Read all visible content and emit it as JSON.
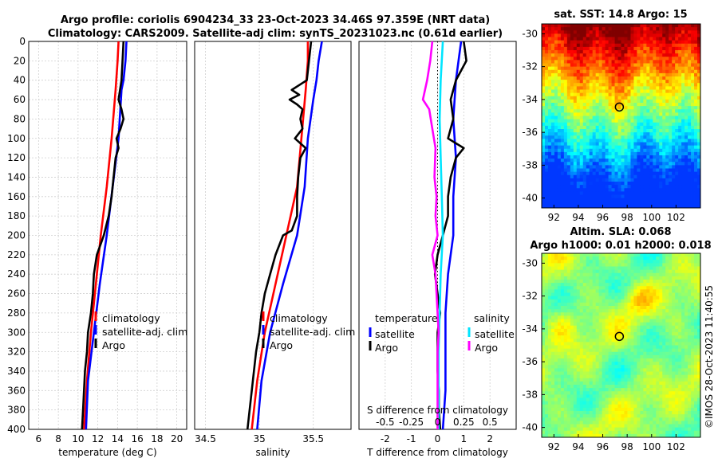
{
  "figure": {
    "title_line1": "Argo profile: coriolis 6904234_33 23-Oct-2023 34.46S 97.359E (NRT data)",
    "title_line2": "Climatology: CARS2009. Satellite-adj clim: synTS_20231023.nc (0.61d earlier)",
    "side_label": "©IMOS 28-Oct-2023 11:40:55"
  },
  "colors": {
    "climatology": "#ff0000",
    "satellite_adj": "#0000ff",
    "argo": "#000000",
    "salinity_satellite": "#00e5ff",
    "salinity_argo": "#ff00ff"
  },
  "chart_data": [
    {
      "type": "line",
      "name": "temperature-profile",
      "xlabel": "temperature (deg C)",
      "ylabel": "",
      "xlim": [
        5,
        21
      ],
      "ylim": [
        400,
        0
      ],
      "xticks": [
        6,
        8,
        10,
        12,
        14,
        16,
        18,
        20
      ],
      "yticks": [
        0,
        20,
        40,
        60,
        80,
        100,
        120,
        140,
        160,
        180,
        200,
        220,
        240,
        260,
        280,
        300,
        320,
        340,
        360,
        380,
        400
      ],
      "legend": [
        "climatology",
        "satellite-adj. clim",
        "Argo"
      ],
      "legend_position": "lower-right",
      "series": [
        {
          "name": "climatology",
          "color": "#ff0000",
          "depth": [
            0,
            20,
            50,
            100,
            150,
            200,
            250,
            300,
            350,
            400
          ],
          "values": [
            14.1,
            14.0,
            13.8,
            13.4,
            12.9,
            12.3,
            11.8,
            11.3,
            10.9,
            10.6
          ]
        },
        {
          "name": "satellite-adj. clim",
          "color": "#0000ff",
          "depth": [
            0,
            20,
            40,
            50,
            100,
            150,
            200,
            250,
            300,
            350,
            400
          ],
          "values": [
            14.9,
            14.8,
            14.6,
            14.4,
            14.1,
            13.5,
            12.9,
            12.2,
            11.6,
            11.0,
            10.8
          ]
        },
        {
          "name": "Argo",
          "color": "#000000",
          "depth": [
            0,
            20,
            40,
            60,
            70,
            80,
            90,
            100,
            110,
            120,
            140,
            160,
            180,
            200,
            220,
            240,
            260,
            280,
            300,
            320,
            340,
            360,
            380,
            400
          ],
          "values": [
            14.6,
            14.5,
            14.4,
            14.1,
            14.4,
            14.6,
            14.3,
            13.9,
            14.1,
            13.8,
            13.6,
            13.4,
            13.1,
            12.6,
            11.9,
            11.6,
            11.5,
            11.3,
            11.0,
            10.9,
            10.7,
            10.6,
            10.5,
            10.4
          ]
        }
      ]
    },
    {
      "type": "line",
      "name": "salinity-profile",
      "xlabel": "salinity",
      "ylabel": "",
      "xlim": [
        34.4,
        35.85
      ],
      "ylim": [
        400,
        0
      ],
      "xticks": [
        34.5,
        35,
        35.5
      ],
      "xticklabels": [
        "34.5",
        "35",
        "35.5"
      ],
      "legend": [
        "climatology",
        "satellite-adj. clim",
        "Argo"
      ],
      "legend_position": "lower-right",
      "series": [
        {
          "name": "climatology",
          "color": "#ff0000",
          "depth": [
            0,
            20,
            50,
            100,
            150,
            200,
            250,
            300,
            350,
            400
          ],
          "values": [
            35.45,
            35.45,
            35.43,
            35.39,
            35.35,
            35.25,
            35.15,
            35.05,
            34.98,
            34.93
          ]
        },
        {
          "name": "satellite-adj. clim",
          "color": "#0000ff",
          "depth": [
            0,
            20,
            40,
            60,
            100,
            150,
            200,
            250,
            300,
            350,
            400
          ],
          "values": [
            35.58,
            35.55,
            35.53,
            35.5,
            35.45,
            35.42,
            35.35,
            35.22,
            35.1,
            35.02,
            34.98
          ]
        },
        {
          "name": "Argo",
          "color": "#000000",
          "depth": [
            0,
            20,
            40,
            50,
            55,
            60,
            65,
            70,
            80,
            90,
            100,
            110,
            120,
            140,
            160,
            180,
            195,
            200,
            220,
            240,
            260,
            280,
            300,
            320,
            340,
            360,
            380,
            400
          ],
          "values": [
            35.48,
            35.46,
            35.44,
            35.3,
            35.37,
            35.28,
            35.35,
            35.4,
            35.38,
            35.4,
            35.33,
            35.43,
            35.38,
            35.36,
            35.35,
            35.35,
            35.3,
            35.22,
            35.15,
            35.1,
            35.05,
            35.02,
            35.0,
            34.97,
            34.95,
            34.93,
            34.91,
            34.89
          ]
        }
      ]
    },
    {
      "type": "line",
      "name": "difference-profile",
      "xlabel": "T difference from climatology",
      "x2label": "S difference from climatology",
      "xlim": [
        -3,
        3
      ],
      "x2lim": [
        -0.75,
        0.75
      ],
      "ylim": [
        400,
        0
      ],
      "xticks": [
        -2,
        -1,
        0,
        1,
        2
      ],
      "x2ticks": [
        -0.5,
        -0.25,
        0,
        0.25,
        0.5
      ],
      "x2ticklabels": [
        "-0.5",
        "-0.25",
        "0",
        "0.25",
        "0.5"
      ],
      "legend_temperature": {
        "title": "temperature",
        "items": [
          "satellite",
          "Argo"
        ]
      },
      "legend_salinity": {
        "title": "salinity",
        "items": [
          "satellite",
          "Argo"
        ]
      },
      "series": [
        {
          "name": "temperature satellite",
          "axis": "T",
          "color": "#0000ff",
          "depth": [
            0,
            40,
            80,
            120,
            160,
            200,
            240,
            280,
            320,
            360,
            400
          ],
          "values": [
            0.9,
            0.7,
            0.6,
            0.7,
            0.6,
            0.6,
            0.4,
            0.3,
            0.3,
            0.3,
            0.2
          ]
        },
        {
          "name": "temperature Argo",
          "axis": "T",
          "color": "#000000",
          "depth": [
            0,
            20,
            40,
            60,
            80,
            100,
            110,
            120,
            140,
            160,
            180,
            200,
            220,
            240,
            260,
            280,
            300,
            320,
            340,
            360,
            380,
            400
          ],
          "values": [
            1.0,
            1.1,
            0.7,
            0.5,
            0.6,
            0.4,
            1.0,
            0.7,
            0.5,
            0.4,
            0.4,
            0.2,
            0.0,
            -0.1,
            0.0,
            0.1,
            0.0,
            0.0,
            0.0,
            0.05,
            0.05,
            0.1
          ]
        },
        {
          "name": "salinity satellite",
          "axis": "S",
          "color": "#00e5ff",
          "depth": [
            0,
            40,
            80,
            120,
            160,
            200,
            240,
            280,
            320,
            360,
            400
          ],
          "values": [
            0.05,
            0.03,
            0.02,
            0.03,
            0.04,
            0.05,
            0.03,
            0.02,
            0.01,
            0.01,
            0.01
          ]
        },
        {
          "name": "salinity Argo",
          "axis": "S",
          "color": "#ff00ff",
          "depth": [
            0,
            20,
            40,
            60,
            70,
            90,
            110,
            140,
            160,
            180,
            200,
            220,
            240,
            260,
            280,
            300,
            320,
            340,
            360,
            380,
            400
          ],
          "values": [
            -0.05,
            -0.07,
            -0.1,
            -0.14,
            -0.08,
            -0.05,
            -0.02,
            -0.03,
            -0.01,
            -0.02,
            0.0,
            -0.05,
            -0.02,
            -0.01,
            0.0,
            0.01,
            0.0,
            0.0,
            0.0,
            0.0,
            0.0
          ]
        }
      ]
    },
    {
      "type": "heatmap",
      "name": "sst-map",
      "title": "sat. SST: 14.8 Argo: 15",
      "xlim": [
        91,
        104
      ],
      "ylim": [
        -40.6,
        -29.4
      ],
      "xticks": [
        92,
        94,
        96,
        98,
        100,
        102
      ],
      "yticks": [
        -30,
        -32,
        -34,
        -36,
        -38,
        -40
      ],
      "marker": {
        "lon": 97.36,
        "lat": -34.46
      }
    },
    {
      "type": "heatmap",
      "name": "sla-map",
      "title_line1": "Altim. SLA: 0.068",
      "title_line2": "Argo h1000: 0.01 h2000: 0.018",
      "xlim": [
        91,
        104
      ],
      "ylim": [
        -40.6,
        -29.4
      ],
      "xticks": [
        92,
        94,
        96,
        98,
        100,
        102
      ],
      "yticks": [
        -30,
        -32,
        -34,
        -36,
        -38,
        -40
      ],
      "marker": {
        "lon": 97.36,
        "lat": -34.46
      }
    }
  ]
}
